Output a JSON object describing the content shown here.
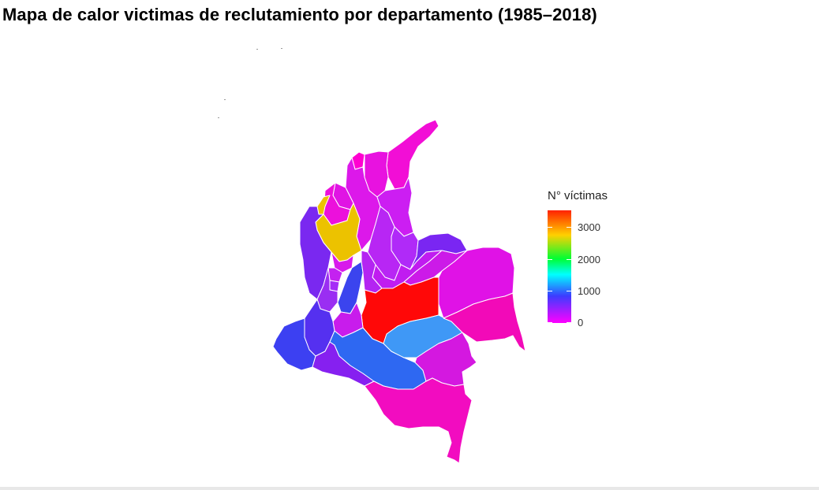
{
  "title": "Mapa de calor victimas de reclutamiento por departamento (1985–2018)",
  "legend": {
    "title": "N° víctimas",
    "labels": [
      "3000",
      "2000",
      "1000",
      "0"
    ]
  },
  "colors": {
    "low": "#ff00ff",
    "mid_low": "#3c3cff",
    "mid": "#00ffff",
    "mid_high": "#00ff33",
    "high_mid": "#ffd000",
    "high": "#ff2200"
  }
}
